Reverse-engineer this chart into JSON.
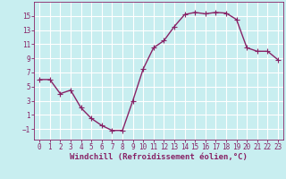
{
  "x": [
    0,
    1,
    2,
    3,
    4,
    5,
    6,
    7,
    8,
    9,
    10,
    11,
    12,
    13,
    14,
    15,
    16,
    17,
    18,
    19,
    20,
    21,
    22,
    23
  ],
  "y": [
    6,
    6,
    4,
    4.5,
    2,
    0.5,
    -0.5,
    -1.2,
    -1.2,
    3,
    7.5,
    10.5,
    11.5,
    13.5,
    15.2,
    15.5,
    15.3,
    15.5,
    15.4,
    14.5,
    10.5,
    10,
    10,
    8.8
  ],
  "line_color": "#882266",
  "marker": "+",
  "marker_size": 4,
  "bg_color": "#c8eef0",
  "grid_color": "#ffffff",
  "xlabel": "Windchill (Refroidissement éolien,°C)",
  "xlabel_color": "#882266",
  "tick_color": "#882266",
  "yticks": [
    -1,
    1,
    3,
    5,
    7,
    9,
    11,
    13,
    15
  ],
  "ylim": [
    -2.5,
    17
  ],
  "xlim": [
    -0.5,
    23.5
  ],
  "xticks": [
    0,
    1,
    2,
    3,
    4,
    5,
    6,
    7,
    8,
    9,
    10,
    11,
    12,
    13,
    14,
    15,
    16,
    17,
    18,
    19,
    20,
    21,
    22,
    23
  ],
  "font_family": "monospace",
  "linewidth": 1.0,
  "xlabel_fontsize": 6.5,
  "tick_fontsize": 5.5,
  "marker_edge_width": 0.8
}
